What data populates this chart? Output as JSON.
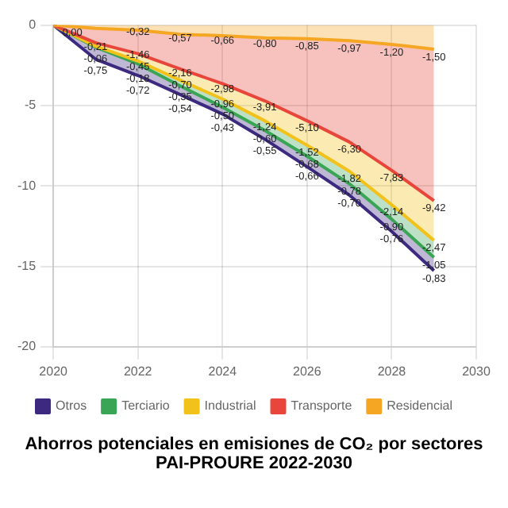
{
  "chart_data": {
    "type": "area",
    "title": "Ahorros potenciales en emisiones de CO₂ por sectores PAI-PROURE  2022-2030",
    "stacked": true,
    "x": [
      2020,
      2021,
      2022,
      2023,
      2024,
      2025,
      2026,
      2027,
      2028,
      2029
    ],
    "xlim": [
      2020,
      2030
    ],
    "xticks": [
      2020,
      2022,
      2024,
      2026,
      2028,
      2030
    ],
    "ylim": [
      -20,
      0
    ],
    "yticks": [
      0,
      -5,
      -10,
      -15,
      -20
    ],
    "grid": true,
    "legend": "bottom",
    "series": [
      {
        "name": "Residencial",
        "color": "#f5a623",
        "values": [
          0,
          -0.2,
          -0.32,
          -0.57,
          -0.66,
          -0.8,
          -0.85,
          -0.97,
          -1.2,
          -1.5
        ],
        "value_labels": [
          null,
          null,
          "-0,32",
          "-0,57",
          "-0,66",
          "-0,80",
          "-0,85",
          "-0,97",
          "-1,20",
          "-1,50"
        ]
      },
      {
        "name": "Transporte",
        "color": "#e8463a",
        "values": [
          0,
          -0.9,
          -1.46,
          -2.16,
          -2.98,
          -3.91,
          -5.1,
          -6.3,
          -7.83,
          -9.42
        ],
        "value_labels": [
          null,
          null,
          "-1,46",
          "-2,16",
          "-2,98",
          "-3,91",
          "-5,10",
          "-6,30",
          "-7,83",
          "-9,42"
        ]
      },
      {
        "name": "Industrial",
        "color": "#f2c21b",
        "values": [
          0,
          -0.21,
          -0.45,
          -0.7,
          -0.96,
          -1.24,
          -1.52,
          -1.82,
          -2.14,
          -2.47
        ],
        "value_labels": [
          null,
          "-0,21",
          "-0,45",
          "-0,70",
          "-0,96",
          "-1,24",
          "-1,52",
          "-1,82",
          "-2,14",
          "-2,47"
        ]
      },
      {
        "name": "Terciario",
        "color": "#3aa655",
        "values": [
          0,
          -0.06,
          -0.18,
          -0.35,
          -0.5,
          -0.6,
          -0.68,
          -0.78,
          -0.9,
          -1.05
        ],
        "value_labels": [
          null,
          "-0,06",
          "-0,18",
          "-0,35",
          "-0,50",
          "-0,60",
          "-0,68",
          "-0,78",
          "-0,90",
          "-1,05"
        ]
      },
      {
        "name": "Otros",
        "color": "#3d2a80",
        "values": [
          0,
          -0.75,
          -0.72,
          -0.54,
          -0.43,
          -0.55,
          -0.66,
          -0.7,
          -0.76,
          -0.83
        ],
        "value_labels": [
          "0,00",
          "-0,75",
          "-0,72",
          "-0,54",
          "-0,43",
          "-0,55",
          "-0,66",
          "-0,70",
          "-0,76",
          "-0,83"
        ]
      }
    ]
  }
}
